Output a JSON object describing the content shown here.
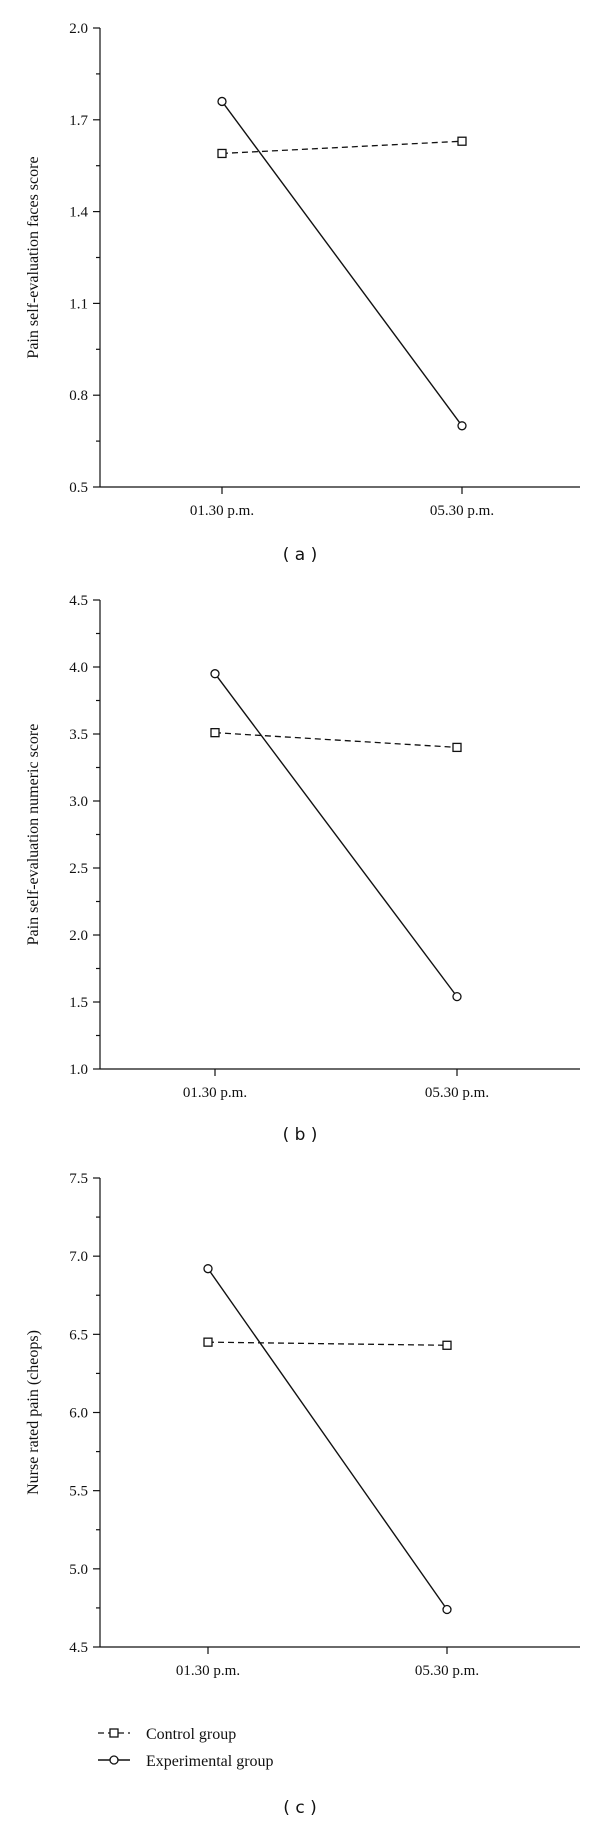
{
  "chart_data": [
    {
      "type": "line",
      "panel_label": "( a )",
      "ylabel": "Pain self-evaluation faces score",
      "xlabel": "",
      "categories": [
        "01.30 p.m.",
        "05.30 p.m."
      ],
      "ylim": [
        0.5,
        2.0
      ],
      "yticks": [
        0.5,
        0.8,
        1.1,
        1.4,
        1.7,
        2.0
      ],
      "ytick_labels": [
        "0.5",
        "0.8",
        "1.1",
        "1.4",
        "1.7",
        "2.0"
      ],
      "series": [
        {
          "name": "Control group",
          "values": [
            1.59,
            1.63
          ]
        },
        {
          "name": "Experimental group",
          "values": [
            1.76,
            0.7
          ]
        }
      ]
    },
    {
      "type": "line",
      "panel_label": "( b )",
      "ylabel": "Pain self-evaluation numeric score",
      "xlabel": "",
      "categories": [
        "01.30 p.m.",
        "05.30 p.m."
      ],
      "ylim": [
        1.0,
        4.5
      ],
      "yticks": [
        1.0,
        1.5,
        2.0,
        2.5,
        3.0,
        3.5,
        4.0,
        4.5
      ],
      "ytick_labels": [
        "1.0",
        "1.5",
        "2.0",
        "2.5",
        "3.0",
        "3.5",
        "4.0",
        "4.5"
      ],
      "series": [
        {
          "name": "Control group",
          "values": [
            3.51,
            3.4
          ]
        },
        {
          "name": "Experimental group",
          "values": [
            3.95,
            1.54
          ]
        }
      ]
    },
    {
      "type": "line",
      "panel_label": "( c )",
      "ylabel": "Nurse rated pain (cheops)",
      "xlabel": "",
      "categories": [
        "01.30 p.m.",
        "05.30 p.m."
      ],
      "ylim": [
        4.5,
        7.5
      ],
      "yticks": [
        4.5,
        5.0,
        5.5,
        6.0,
        6.5,
        7.0,
        7.5
      ],
      "ytick_labels": [
        "4.5",
        "5.0",
        "5.5",
        "6.0",
        "6.5",
        "7.0",
        "7.5"
      ],
      "series": [
        {
          "name": "Control group",
          "values": [
            6.45,
            6.43
          ]
        },
        {
          "name": "Experimental group",
          "values": [
            6.92,
            4.74
          ]
        }
      ]
    }
  ],
  "legend": {
    "items": [
      {
        "label": "Control group",
        "style": "dashed-square"
      },
      {
        "label": "Experimental group",
        "style": "solid-circle"
      }
    ],
    "placement": "bottom-left"
  },
  "colors": {
    "ink": "#111111",
    "background": "#ffffff"
  }
}
